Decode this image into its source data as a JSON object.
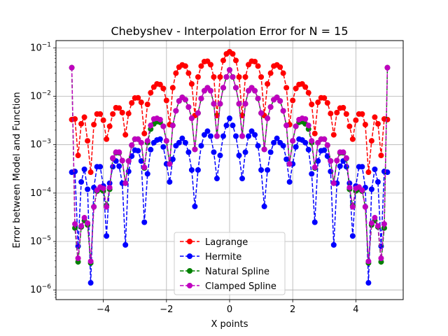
{
  "chart_data": {
    "type": "line",
    "title": "Chebyshev - Interpolation Error for N = 15",
    "xlabel": "X points",
    "ylabel": "Error between Model and Function",
    "xlim": [
      -5.5,
      5.5
    ],
    "ylim_log10": [
      -6.2,
      -0.85
    ],
    "yscale": "log",
    "grid": true,
    "legend_position": "lower-center",
    "x_ticks": [
      -4,
      -2,
      0,
      2,
      4
    ],
    "x_tick_labels": [
      "−4",
      "−2",
      "0",
      "2",
      "4"
    ],
    "y_ticks_log10": [
      -6,
      -5,
      -4,
      -3,
      -2,
      -1
    ],
    "x": [
      -5.0,
      -4.9,
      -4.8,
      -4.7,
      -4.6,
      -4.5,
      -4.4,
      -4.3,
      -4.2,
      -4.1,
      -4.0,
      -3.9,
      -3.8,
      -3.7,
      -3.6,
      -3.5,
      -3.4,
      -3.3,
      -3.2,
      -3.1,
      -3.0,
      -2.9,
      -2.8,
      -2.7,
      -2.6,
      -2.5,
      -2.4,
      -2.3,
      -2.2,
      -2.1,
      -2.0,
      -1.9,
      -1.8,
      -1.7,
      -1.6,
      -1.5,
      -1.4,
      -1.3,
      -1.2,
      -1.1,
      -1.0,
      -0.9,
      -0.8,
      -0.7,
      -0.6,
      -0.5,
      -0.4,
      -0.3,
      -0.2,
      -0.1,
      0.0,
      0.1,
      0.2,
      0.3,
      0.4,
      0.5,
      0.6,
      0.7,
      0.8,
      0.9,
      1.0,
      1.1,
      1.2,
      1.3,
      1.4,
      1.5,
      1.6,
      1.7,
      1.8,
      1.9,
      2.0,
      2.1,
      2.2,
      2.3,
      2.4,
      2.5,
      2.6,
      2.7,
      2.8,
      2.9,
      3.0,
      3.1,
      3.2,
      3.3,
      3.4,
      3.5,
      3.6,
      3.7,
      3.8,
      3.9,
      4.0,
      4.1,
      4.2,
      4.3,
      4.4,
      4.5,
      4.6,
      4.7,
      4.8,
      4.9,
      5.0
    ],
    "series": [
      {
        "name": "Lagrange",
        "color": "#ff0000",
        "values": [
          0.0033,
          0.0034,
          0.0006,
          0.0027,
          0.0037,
          0.0012,
          0.00027,
          0.0026,
          0.0043,
          0.0043,
          0.0032,
          0.0013,
          0.0024,
          0.0043,
          0.0058,
          0.0057,
          0.0046,
          0.0016,
          0.0044,
          0.0073,
          0.0092,
          0.0093,
          0.0075,
          0.0017,
          0.0068,
          0.0118,
          0.0155,
          0.018,
          0.0175,
          0.0145,
          0.0082,
          0.0026,
          0.015,
          0.03,
          0.04,
          0.0445,
          0.042,
          0.03,
          0.018,
          0.004,
          0.025,
          0.042,
          0.052,
          0.053,
          0.045,
          0.025,
          0.004,
          0.025,
          0.055,
          0.075,
          0.083,
          0.075,
          0.055,
          0.025,
          0.004,
          0.025,
          0.045,
          0.053,
          0.052,
          0.042,
          0.025,
          0.004,
          0.018,
          0.03,
          0.042,
          0.0445,
          0.04,
          0.03,
          0.015,
          0.0026,
          0.0082,
          0.0145,
          0.0175,
          0.018,
          0.0155,
          0.0118,
          0.0068,
          0.0017,
          0.0075,
          0.0093,
          0.0092,
          0.0073,
          0.0044,
          0.0016,
          0.0046,
          0.0057,
          0.0058,
          0.0043,
          0.0024,
          0.0013,
          0.0032,
          0.0043,
          0.0043,
          0.0026,
          0.00027,
          0.0012,
          0.0037,
          0.0027,
          0.0006,
          0.0034,
          0.0033
        ]
      },
      {
        "name": "Hermite",
        "color": "#0000ff",
        "values": [
          0.00027,
          0.00028,
          8e-06,
          0.00017,
          0.00031,
          0.00012,
          1.4e-06,
          0.00013,
          0.00035,
          0.00035,
          0.00014,
          1.3e-05,
          0.00016,
          0.00035,
          0.00046,
          0.00036,
          0.00016,
          8.5e-06,
          0.00028,
          0.00058,
          0.00077,
          0.00075,
          0.00046,
          2.5e-05,
          0.00025,
          0.00079,
          0.0011,
          0.00125,
          0.0013,
          0.0009,
          0.0004,
          0.00017,
          0.0005,
          0.00095,
          0.0011,
          0.00135,
          0.0011,
          0.0007,
          0.0003,
          5.3e-05,
          0.0003,
          0.00095,
          0.0016,
          0.0019,
          0.0015,
          0.0007,
          0.0002,
          0.0006,
          0.0015,
          0.0025,
          0.0035,
          0.0025,
          0.0015,
          0.0006,
          0.0002,
          0.0007,
          0.0015,
          0.0019,
          0.0016,
          0.00095,
          0.0003,
          5.3e-05,
          0.0003,
          0.0007,
          0.0011,
          0.00135,
          0.0011,
          0.00095,
          0.0005,
          0.00017,
          0.0004,
          0.0009,
          0.0013,
          0.00125,
          0.0011,
          0.00079,
          0.00025,
          2.5e-05,
          0.00046,
          0.00075,
          0.00077,
          0.00058,
          0.00028,
          8.5e-06,
          0.00016,
          0.00036,
          0.00046,
          0.00035,
          0.00016,
          1.3e-05,
          0.00014,
          0.00035,
          0.00035,
          0.00013,
          1.4e-06,
          0.00012,
          0.00031,
          0.00017,
          8e-06,
          0.00028,
          0.00027
        ]
      },
      {
        "name": "Natural Spline",
        "color": "#008000",
        "values": [
          0.039,
          1.9e-05,
          3.8e-06,
          2e-05,
          2.7e-05,
          2.2e-05,
          3.6e-06,
          5.2e-05,
          0.00011,
          0.00012,
          0.000111,
          5.5e-05,
          0.00012,
          0.00052,
          0.00068,
          0.00068,
          0.00047,
          0.00016,
          0.00046,
          0.00097,
          0.0013,
          0.0013,
          0.0011,
          0.00033,
          0.0011,
          0.0021,
          0.0027,
          0.003,
          0.0029,
          0.0024,
          0.0012,
          0.0004,
          0.0025,
          0.005,
          0.008,
          0.0095,
          0.0085,
          0.006,
          0.0035,
          0.0008,
          0.0045,
          0.009,
          0.013,
          0.015,
          0.013,
          0.007,
          0.0015,
          0.007,
          0.015,
          0.025,
          0.035,
          0.025,
          0.015,
          0.007,
          0.0015,
          0.007,
          0.013,
          0.015,
          0.013,
          0.009,
          0.0045,
          0.0008,
          0.0035,
          0.006,
          0.0085,
          0.0095,
          0.008,
          0.005,
          0.0025,
          0.0004,
          0.0012,
          0.0024,
          0.0029,
          0.003,
          0.0027,
          0.0021,
          0.0011,
          0.00033,
          0.0011,
          0.0013,
          0.0013,
          0.00097,
          0.00046,
          0.00016,
          0.00047,
          0.00068,
          0.00068,
          0.00052,
          0.00012,
          5.5e-05,
          0.000111,
          0.00012,
          0.00011,
          5.2e-05,
          3.6e-06,
          2.2e-05,
          2.7e-05,
          2e-05,
          3.8e-06,
          1.9e-05,
          0.039
        ]
      },
      {
        "name": "Clamped Spline",
        "color": "#bf00bf",
        "values": [
          0.039,
          2.3e-05,
          4.5e-06,
          2.1e-05,
          3.1e-05,
          2.4e-05,
          3.9e-06,
          5.2e-05,
          0.000115,
          0.000133,
          0.000125,
          5.2e-05,
          0.00013,
          0.00053,
          0.0007,
          0.0007,
          0.00047,
          0.00016,
          0.00046,
          0.00098,
          0.0013,
          0.0013,
          0.0011,
          0.00034,
          0.0012,
          0.0025,
          0.0034,
          0.0035,
          0.0033,
          0.0024,
          0.0012,
          0.0004,
          0.0025,
          0.005,
          0.008,
          0.0095,
          0.0085,
          0.006,
          0.0035,
          0.0008,
          0.0045,
          0.009,
          0.013,
          0.015,
          0.013,
          0.007,
          0.0015,
          0.007,
          0.015,
          0.025,
          0.035,
          0.025,
          0.015,
          0.007,
          0.0015,
          0.007,
          0.013,
          0.015,
          0.013,
          0.009,
          0.0045,
          0.0008,
          0.0035,
          0.006,
          0.0085,
          0.0095,
          0.008,
          0.005,
          0.0025,
          0.0004,
          0.0012,
          0.0024,
          0.0033,
          0.0035,
          0.0034,
          0.0025,
          0.0012,
          0.00034,
          0.0011,
          0.0013,
          0.0013,
          0.00098,
          0.00046,
          0.00016,
          0.00047,
          0.0007,
          0.0007,
          0.00053,
          0.00013,
          5.2e-05,
          0.000125,
          0.000133,
          0.000115,
          5.2e-05,
          3.9e-06,
          2.4e-05,
          3.1e-05,
          2.1e-05,
          4.5e-06,
          2.3e-05,
          0.039
        ]
      }
    ]
  }
}
